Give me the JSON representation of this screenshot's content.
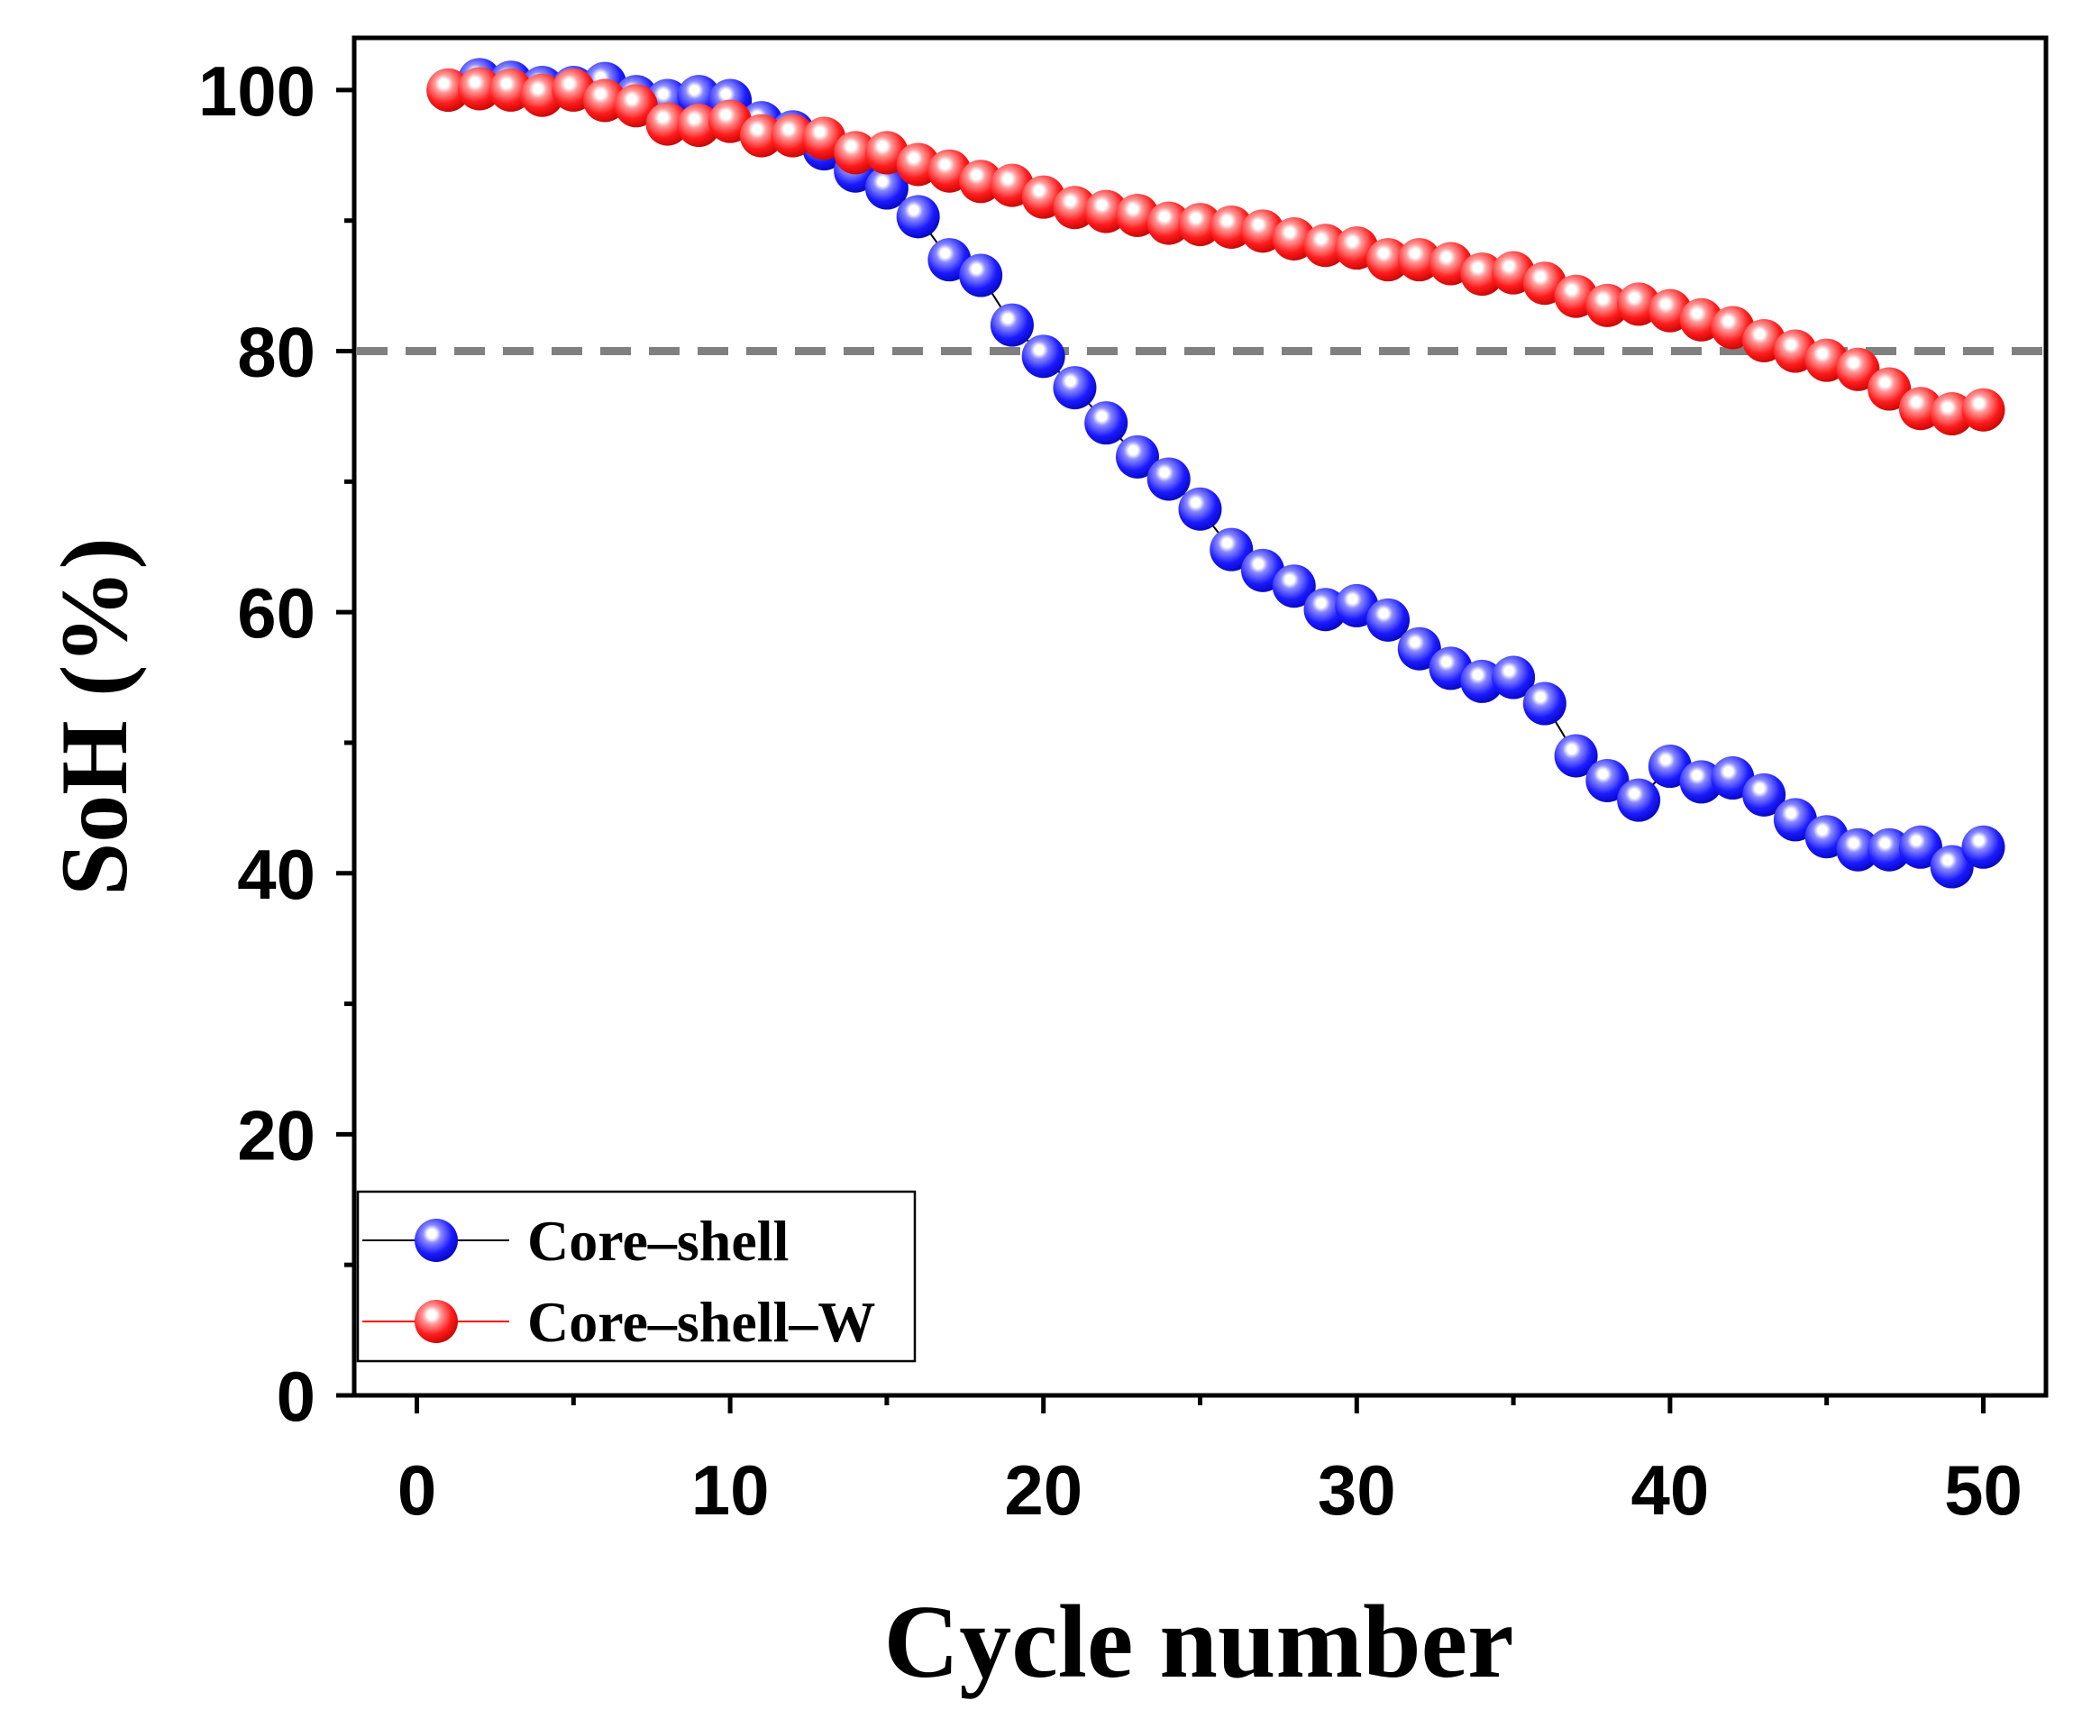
{
  "chart_data": {
    "type": "line",
    "xlabel": "Cycle number",
    "ylabel": "SoH (%)",
    "xlim": [
      -2,
      52
    ],
    "ylim": [
      0,
      104
    ],
    "x_ticks": [
      0,
      10,
      20,
      30,
      40,
      50
    ],
    "y_ticks": [
      0,
      20,
      40,
      60,
      80,
      100
    ],
    "x_tick_labels": [
      "0",
      "10",
      "20",
      "30",
      "40",
      "50"
    ],
    "y_tick_labels": [
      "0",
      "20",
      "40",
      "60",
      "80",
      "100"
    ],
    "reference_line": {
      "y": 80,
      "style": "dashed",
      "color": "#808080"
    },
    "grid": false,
    "legend_position": "bottom-left",
    "series": [
      {
        "name": "Core–shell",
        "color": "#0000ff",
        "line_color": "#000000",
        "x": [
          1,
          2,
          3,
          4,
          5,
          6,
          7,
          8,
          9,
          10,
          11,
          12,
          13,
          14,
          15,
          16,
          17,
          18,
          19,
          20,
          21,
          22,
          23,
          24,
          25,
          26,
          27,
          28,
          29,
          30,
          31,
          32,
          33,
          34,
          35,
          36,
          37,
          38,
          39,
          40,
          41,
          42,
          43,
          44,
          45,
          46,
          47,
          48,
          49,
          50
        ],
        "y": [
          100,
          100.8,
          100.6,
          100.2,
          100.2,
          100.5,
          99.5,
          99.2,
          99.5,
          99.2,
          97.5,
          96.8,
          95.5,
          93.8,
          92.5,
          90.3,
          87,
          85.8,
          82,
          79.6,
          77.2,
          74.5,
          71.9,
          70.2,
          67.9,
          64.8,
          63.2,
          62,
          60.2,
          60.5,
          59.4,
          57.2,
          55.7,
          54.7,
          55,
          53,
          49,
          47.1,
          45.6,
          48.2,
          47,
          47.3,
          46,
          44.1,
          42.8,
          41.8,
          41.8,
          42,
          40.5,
          42
        ],
        "marker": "sphere"
      },
      {
        "name": "Core–shell–W",
        "color": "#ff0000",
        "line_color": "#ff0000",
        "x": [
          1,
          2,
          3,
          4,
          5,
          6,
          7,
          8,
          9,
          10,
          11,
          12,
          13,
          14,
          15,
          16,
          17,
          18,
          19,
          20,
          21,
          22,
          23,
          24,
          25,
          26,
          27,
          28,
          29,
          30,
          31,
          32,
          33,
          34,
          35,
          36,
          37,
          38,
          39,
          40,
          41,
          42,
          43,
          44,
          45,
          46,
          47,
          48,
          49,
          50
        ],
        "y": [
          100,
          100.1,
          100,
          99.6,
          100,
          99.2,
          98.8,
          97.4,
          97.3,
          97.6,
          96.5,
          96.5,
          96.3,
          95.2,
          95.2,
          94.3,
          93.8,
          93,
          92.7,
          91.8,
          91,
          90.7,
          90.4,
          89.8,
          89.7,
          89.5,
          89.2,
          88.6,
          88.1,
          87.9,
          87,
          87,
          86.7,
          85.9,
          86,
          85.2,
          84.2,
          83.5,
          83.6,
          83.1,
          82.4,
          81.8,
          80.8,
          80,
          79.3,
          78.6,
          77.1,
          75.6,
          75.2,
          75.5
        ],
        "marker": "sphere"
      }
    ]
  }
}
